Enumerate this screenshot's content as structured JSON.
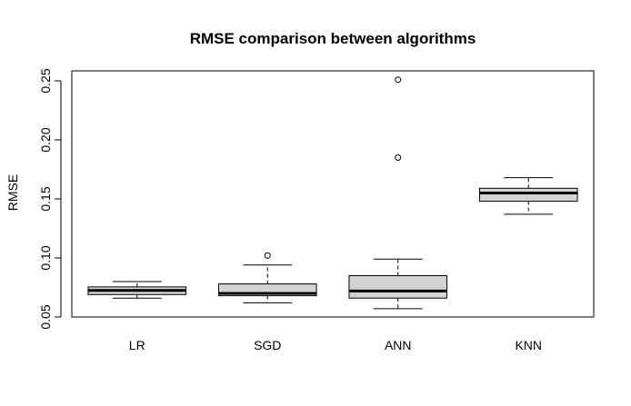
{
  "chart_data": {
    "type": "boxplot",
    "title": "RMSE comparison between algorithms",
    "xlabel": "",
    "ylabel": "RMSE",
    "ylim": [
      0.05,
      0.25
    ],
    "yticks": [
      "0.05",
      "0.10",
      "0.15",
      "0.20",
      "0.25"
    ],
    "categories": [
      "LR",
      "SGD",
      "ANN",
      "KNN"
    ],
    "box_fill": "#d3d3d3",
    "boxes": [
      {
        "name": "LR",
        "whisker_low": 0.066,
        "q1": 0.069,
        "median": 0.0725,
        "q3": 0.0755,
        "whisker_high": 0.08,
        "outliers": []
      },
      {
        "name": "SGD",
        "whisker_low": 0.062,
        "q1": 0.068,
        "median": 0.07,
        "q3": 0.078,
        "whisker_high": 0.094,
        "outliers": [
          0.102
        ]
      },
      {
        "name": "ANN",
        "whisker_low": 0.057,
        "q1": 0.066,
        "median": 0.072,
        "q3": 0.085,
        "whisker_high": 0.099,
        "outliers": [
          0.185,
          0.251
        ]
      },
      {
        "name": "KNN",
        "whisker_low": 0.137,
        "q1": 0.148,
        "median": 0.155,
        "q3": 0.159,
        "whisker_high": 0.168,
        "outliers": []
      }
    ]
  }
}
